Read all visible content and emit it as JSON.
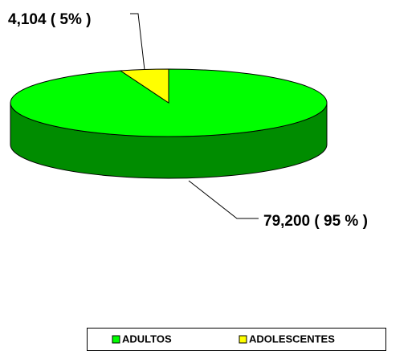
{
  "chart_data": {
    "type": "pie",
    "categories": [
      "ADULTOS",
      "ADOLESCENTES"
    ],
    "values": [
      79200,
      4104
    ],
    "value_labels": [
      "79,200 ( 95 % )",
      "4,104 ( 5% )"
    ],
    "colors": [
      "#00ff00",
      "#ffff00"
    ],
    "legend": "bottom"
  }
}
